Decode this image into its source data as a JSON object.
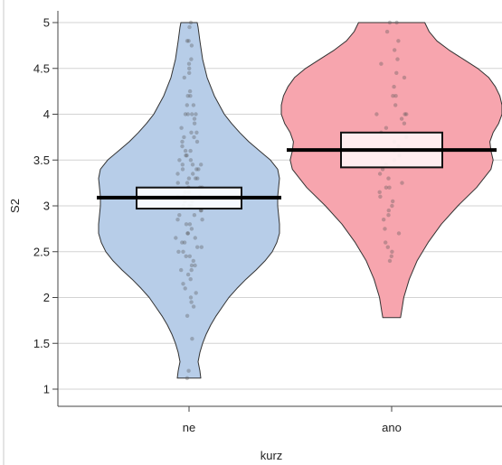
{
  "chart_data": {
    "type": "violin",
    "title": "",
    "xlabel": "kurz",
    "ylabel": "S2",
    "ylim": [
      1,
      5
    ],
    "y_ticks": [
      1,
      1.5,
      2,
      2.5,
      3,
      3.5,
      4,
      4.5,
      5
    ],
    "y_tick_labels": [
      "1",
      "1.5",
      "2",
      "2.5",
      "3",
      "3.5",
      "4",
      "4.5",
      "5"
    ],
    "categories": [
      "ne",
      "ano"
    ],
    "grid": true,
    "legend": "none",
    "groups": [
      {
        "category": "ne",
        "fill_color": "#b7cde8",
        "box_fill": "#fbfdff",
        "mean": 3.09,
        "ci_low": 2.97,
        "ci_high": 3.2,
        "y_range": [
          1.12,
          5.0
        ],
        "density_profile": [
          [
            1.12,
            0.13
          ],
          [
            1.2,
            0.12
          ],
          [
            1.3,
            0.1
          ],
          [
            1.4,
            0.12
          ],
          [
            1.5,
            0.15
          ],
          [
            1.6,
            0.19
          ],
          [
            1.7,
            0.24
          ],
          [
            1.8,
            0.3
          ],
          [
            1.9,
            0.37
          ],
          [
            2.0,
            0.44
          ],
          [
            2.1,
            0.53
          ],
          [
            2.2,
            0.63
          ],
          [
            2.3,
            0.74
          ],
          [
            2.4,
            0.84
          ],
          [
            2.5,
            0.92
          ],
          [
            2.6,
            0.97
          ],
          [
            2.7,
            1.0
          ],
          [
            2.8,
            1.0
          ],
          [
            2.9,
            0.99
          ],
          [
            3.0,
            0.98
          ],
          [
            3.1,
            0.98
          ],
          [
            3.2,
            0.99
          ],
          [
            3.3,
            1.0
          ],
          [
            3.4,
            0.98
          ],
          [
            3.5,
            0.9
          ],
          [
            3.6,
            0.78
          ],
          [
            3.7,
            0.66
          ],
          [
            3.8,
            0.56
          ],
          [
            3.9,
            0.47
          ],
          [
            4.0,
            0.39
          ],
          [
            4.2,
            0.28
          ],
          [
            4.4,
            0.2
          ],
          [
            4.6,
            0.15
          ],
          [
            4.8,
            0.12
          ],
          [
            4.95,
            0.1
          ],
          [
            5.0,
            0.09
          ]
        ],
        "points": [
          5.0,
          4.95,
          4.8,
          4.8,
          4.75,
          4.6,
          4.55,
          4.5,
          4.45,
          4.4,
          4.25,
          4.2,
          4.2,
          4.1,
          4.1,
          4.0,
          4.0,
          4.0,
          4.0,
          3.95,
          3.9,
          3.85,
          3.8,
          3.8,
          3.75,
          3.75,
          3.7,
          3.7,
          3.65,
          3.6,
          3.6,
          3.55,
          3.55,
          3.5,
          3.5,
          3.45,
          3.45,
          3.45,
          3.4,
          3.4,
          3.4,
          3.35,
          3.35,
          3.3,
          3.3,
          3.3,
          3.25,
          3.25,
          3.2,
          3.2,
          3.2,
          3.15,
          3.15,
          3.1,
          3.1,
          3.1,
          3.05,
          3.05,
          3.0,
          3.0,
          3.0,
          2.95,
          2.95,
          2.9,
          2.9,
          2.85,
          2.85,
          2.8,
          2.8,
          2.75,
          2.7,
          2.7,
          2.65,
          2.65,
          2.6,
          2.6,
          2.55,
          2.55,
          2.5,
          2.5,
          2.45,
          2.45,
          2.4,
          2.35,
          2.35,
          2.3,
          2.3,
          2.25,
          2.2,
          2.15,
          2.1,
          2.05,
          2.0,
          1.95,
          1.9,
          1.8,
          1.55,
          1.2,
          1.12
        ]
      },
      {
        "category": "ano",
        "fill_color": "#f7a5ae",
        "box_fill": "#fff3f4",
        "mean": 3.61,
        "ci_low": 3.42,
        "ci_high": 3.8,
        "y_range": [
          1.78,
          5.0
        ],
        "density_profile": [
          [
            1.78,
            0.08
          ],
          [
            1.85,
            0.09
          ],
          [
            2.0,
            0.11
          ],
          [
            2.2,
            0.16
          ],
          [
            2.4,
            0.23
          ],
          [
            2.6,
            0.33
          ],
          [
            2.8,
            0.45
          ],
          [
            3.0,
            0.6
          ],
          [
            3.2,
            0.77
          ],
          [
            3.4,
            0.9
          ],
          [
            3.5,
            0.92
          ],
          [
            3.6,
            0.9
          ],
          [
            3.7,
            0.89
          ],
          [
            3.8,
            0.92
          ],
          [
            3.9,
            0.97
          ],
          [
            4.0,
            1.0
          ],
          [
            4.1,
            1.0
          ],
          [
            4.2,
            0.98
          ],
          [
            4.3,
            0.94
          ],
          [
            4.4,
            0.88
          ],
          [
            4.5,
            0.78
          ],
          [
            4.6,
            0.65
          ],
          [
            4.7,
            0.52
          ],
          [
            4.8,
            0.41
          ],
          [
            4.9,
            0.34
          ],
          [
            5.0,
            0.3
          ]
        ],
        "points": [
          5.0,
          5.0,
          4.9,
          4.8,
          4.7,
          4.6,
          4.55,
          4.45,
          4.4,
          4.3,
          4.2,
          4.2,
          4.1,
          4.0,
          4.0,
          4.0,
          3.95,
          3.9,
          3.85,
          3.8,
          3.75,
          3.7,
          3.65,
          3.6,
          3.55,
          3.5,
          3.45,
          3.4,
          3.35,
          3.3,
          3.25,
          3.2,
          3.2,
          3.15,
          3.1,
          3.05,
          3.0,
          2.95,
          2.9,
          2.85,
          2.75,
          2.7,
          2.6,
          2.55,
          2.5,
          2.45,
          2.4
        ]
      }
    ],
    "colors": {
      "grid": "#d3d3d3",
      "outline": "#333333",
      "points": "#555555",
      "mean_line": "#000000",
      "axis": "#444444"
    }
  }
}
